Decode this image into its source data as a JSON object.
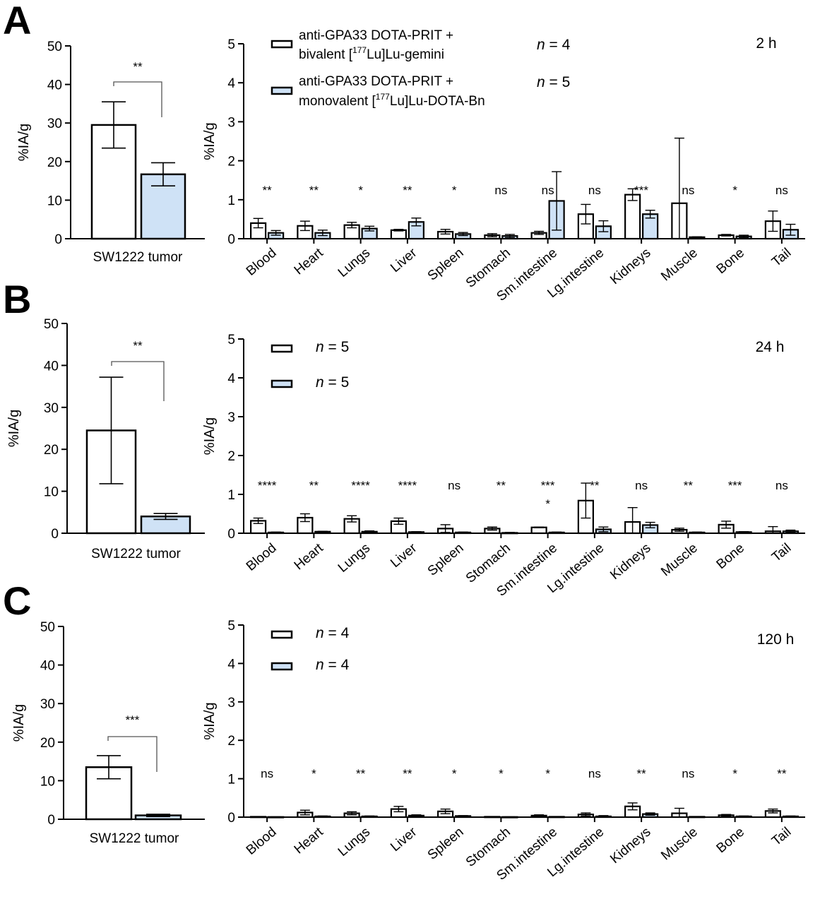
{
  "colors": {
    "group1_fill": "#ffffff",
    "group2_fill": "#cfe2f6",
    "stroke": "#000000"
  },
  "legend": {
    "group1": {
      "line1": "anti-GPA33 DOTA-PRIT +",
      "line2_pre": "bivalent [",
      "line2_sup": "177",
      "line2_post": "Lu]Lu-gemini"
    },
    "group2": {
      "line1": "anti-GPA33 DOTA-PRIT +",
      "line2_pre": "monovalent [",
      "line2_sup": "177",
      "line2_post": "Lu]Lu-DOTA-Bn"
    }
  },
  "chart_data": [
    {
      "panel": "A",
      "type": "bar",
      "time_label": "",
      "ylabel": "%IA/g",
      "ylim": [
        0,
        50
      ],
      "yticks": [
        0,
        10,
        20,
        30,
        40,
        50
      ],
      "categories": [
        "SW1222 tumor"
      ],
      "series": [
        {
          "values": [
            29.5
          ],
          "errors": [
            6.0
          ]
        },
        {
          "values": [
            16.7
          ],
          "errors": [
            3.0
          ]
        }
      ],
      "significance": [
        "**"
      ],
      "n_labels": []
    },
    {
      "panel": "A",
      "type": "bar",
      "time_label": "2 h",
      "ylabel": "%IA/g",
      "ylim": [
        0,
        5
      ],
      "yticks": [
        0,
        1,
        2,
        3,
        4,
        5
      ],
      "categories": [
        "Blood",
        "Heart",
        "Lungs",
        "Liver",
        "Spleen",
        "Stomach",
        "Sm.intestine",
        "Lg.intestine",
        "Kidneys",
        "Muscle",
        "Bone",
        "Tail"
      ],
      "series": [
        {
          "values": [
            0.4,
            0.33,
            0.35,
            0.22,
            0.18,
            0.09,
            0.15,
            0.63,
            1.13,
            0.91,
            0.09,
            0.45
          ],
          "errors": [
            0.12,
            0.12,
            0.07,
            0.02,
            0.06,
            0.04,
            0.04,
            0.25,
            0.15,
            1.67,
            0.02,
            0.26
          ]
        },
        {
          "values": [
            0.15,
            0.15,
            0.26,
            0.43,
            0.12,
            0.07,
            0.97,
            0.32,
            0.63,
            0.04,
            0.06,
            0.23
          ],
          "errors": [
            0.06,
            0.07,
            0.06,
            0.1,
            0.04,
            0.04,
            0.75,
            0.14,
            0.1,
            0.01,
            0.03,
            0.14
          ]
        }
      ],
      "significance": [
        "**",
        "**",
        "*",
        "**",
        "*",
        "ns",
        "ns",
        "ns",
        "***",
        "ns",
        "*",
        "ns"
      ],
      "n_labels": [
        "n = 4",
        "n = 5"
      ]
    },
    {
      "panel": "B",
      "type": "bar",
      "time_label": "",
      "ylabel": "%IA/g",
      "ylim": [
        0,
        50
      ],
      "yticks": [
        0,
        10,
        20,
        30,
        40,
        50
      ],
      "categories": [
        "SW1222 tumor"
      ],
      "series": [
        {
          "values": [
            24.5
          ],
          "errors": [
            12.7
          ]
        },
        {
          "values": [
            4.0
          ],
          "errors": [
            0.7
          ]
        }
      ],
      "significance": [
        "**"
      ],
      "n_labels": []
    },
    {
      "panel": "B",
      "type": "bar",
      "time_label": "24 h",
      "ylabel": "%IA/g",
      "ylim": [
        0,
        5
      ],
      "yticks": [
        0,
        1,
        2,
        3,
        4,
        5
      ],
      "categories": [
        "Blood",
        "Heart",
        "Lungs",
        "Liver",
        "Spleen",
        "Stomach",
        "Sm.intestine",
        "Lg.intestine",
        "Kidneys",
        "Muscle",
        "Bone",
        "Tail"
      ],
      "series": [
        {
          "values": [
            0.32,
            0.4,
            0.37,
            0.31,
            0.12,
            0.12,
            0.15,
            0.84,
            0.29,
            0.09,
            0.22,
            0.05
          ],
          "errors": [
            0.07,
            0.1,
            0.08,
            0.08,
            0.1,
            0.04,
            0.01,
            0.45,
            0.37,
            0.04,
            0.09,
            0.12
          ]
        },
        {
          "values": [
            0.02,
            0.04,
            0.04,
            0.03,
            0.02,
            0.01,
            0.02,
            0.1,
            0.21,
            0.02,
            0.03,
            0.05
          ],
          "errors": [
            0.01,
            0.01,
            0.02,
            0.01,
            0.01,
            0.01,
            0.01,
            0.06,
            0.07,
            0.01,
            0.01,
            0.03
          ]
        }
      ],
      "significance": [
        "****",
        "**",
        "****",
        "****",
        "ns",
        "**",
        "***\n*",
        "**",
        "ns",
        "**",
        "***",
        "ns"
      ],
      "n_labels": [
        "n = 5",
        "n = 5"
      ]
    },
    {
      "panel": "C",
      "type": "bar",
      "time_label": "",
      "ylabel": "%IA/g",
      "ylim": [
        0,
        50
      ],
      "yticks": [
        0,
        10,
        20,
        30,
        40,
        50
      ],
      "categories": [
        "SW1222 tumor"
      ],
      "series": [
        {
          "values": [
            13.5
          ],
          "errors": [
            3.0
          ]
        },
        {
          "values": [
            1.0
          ],
          "errors": [
            0.3
          ]
        }
      ],
      "significance": [
        "***"
      ],
      "n_labels": []
    },
    {
      "panel": "C",
      "type": "bar",
      "time_label": "120 h",
      "ylabel": "%IA/g",
      "ylim": [
        0,
        5
      ],
      "yticks": [
        0,
        1,
        2,
        3,
        4,
        5
      ],
      "categories": [
        "Blood",
        "Heart",
        "Lungs",
        "Liver",
        "Spleen",
        "Stomach",
        "Sm.intestine",
        "Lg.intestine",
        "Kidneys",
        "Muscle",
        "Bone",
        "Tail"
      ],
      "series": [
        {
          "values": [
            0.01,
            0.12,
            0.1,
            0.21,
            0.15,
            0.01,
            0.04,
            0.07,
            0.28,
            0.1,
            0.05,
            0.16
          ],
          "errors": [
            0.005,
            0.06,
            0.04,
            0.07,
            0.06,
            0.005,
            0.02,
            0.04,
            0.09,
            0.13,
            0.02,
            0.05
          ]
        },
        {
          "values": [
            0.005,
            0.02,
            0.02,
            0.04,
            0.03,
            0.005,
            0.01,
            0.02,
            0.08,
            0.01,
            0.02,
            0.02
          ],
          "errors": [
            0.003,
            0.01,
            0.01,
            0.02,
            0.01,
            0.003,
            0.005,
            0.02,
            0.03,
            0.005,
            0.01,
            0.01
          ]
        }
      ],
      "significance": [
        "ns",
        "*",
        "**",
        "**",
        "*",
        "*",
        "*",
        "ns",
        "**",
        "ns",
        "*",
        "**"
      ],
      "n_labels": [
        "n = 4",
        "n = 4"
      ]
    }
  ],
  "panels": [
    "A",
    "B",
    "C"
  ]
}
